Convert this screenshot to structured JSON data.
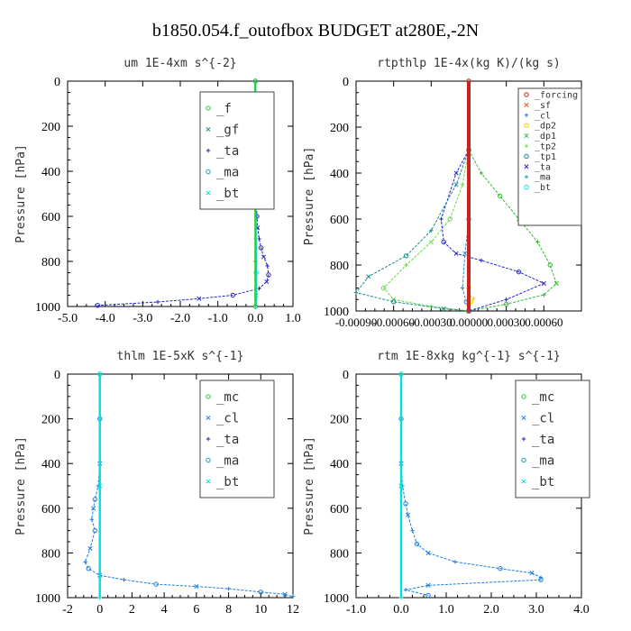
{
  "title": "b1850.054.f_outofbox  BUDGET at280E,-2N",
  "colors": {
    "_f": "#33cc33",
    "_gf": "#1f8a8a",
    "_ta": "#2222cc",
    "_ma": "#1a9ab8",
    "_bt": "#00e0e0",
    "_mc": "#33cc33",
    "_cl": "#1a7fe0",
    "_forcing": "#cc2222",
    "_sf": "#dd5511",
    "_dp2": "#ffcc00",
    "_dp1": "#33bb33",
    "_tp2": "#66dd44",
    "_tp1": "#1a8a8a"
  },
  "chart_data": [
    {
      "type": "line",
      "title": "um  1E-4xm s^{-2}",
      "ylabel": "Pressure [hPa]",
      "xlim": [
        -5.0,
        1.0
      ],
      "ylim": [
        1000,
        0
      ],
      "xticks": [
        "-5.0",
        "-4.0",
        "-3.0",
        "-2.0",
        "-1.0",
        "0.0",
        "1.0"
      ],
      "yticks": [
        "0",
        "200",
        "400",
        "600",
        "800",
        "1000"
      ],
      "legend": [
        "_f",
        "_gf",
        "_ta",
        "_ma",
        "_bt"
      ],
      "legend_position": "top-right",
      "series": [
        {
          "name": "_ta",
          "x": [
            0.0,
            0.0,
            0.02,
            0.04,
            0.06,
            0.1,
            0.15,
            0.22,
            0.32,
            0.35,
            0.3,
            0.1,
            -0.6,
            -1.5,
            -2.6,
            -4.2
          ],
          "y": [
            0,
            300,
            500,
            600,
            650,
            700,
            740,
            780,
            820,
            860,
            890,
            920,
            950,
            965,
            980,
            995
          ]
        },
        {
          "name": "_gf",
          "x": [
            0.0,
            0.0,
            0.0,
            0.0
          ],
          "y": [
            0,
            400,
            800,
            1000
          ]
        },
        {
          "name": "_bt",
          "x": [
            0.0,
            0.0,
            0.01,
            0.02,
            0.02,
            0.01
          ],
          "y": [
            0,
            500,
            700,
            850,
            950,
            1000
          ]
        },
        {
          "name": "_f",
          "x": [
            0.0,
            0.0,
            0.0,
            0.0
          ],
          "y": [
            0,
            400,
            800,
            1000
          ]
        }
      ]
    },
    {
      "type": "line",
      "title": "rtpthlp  1E-4x(kg K)/(kg s)",
      "ylabel": "Pressure [hPa]",
      "xlim": [
        -0.0009,
        0.0009
      ],
      "ylim": [
        1000,
        0
      ],
      "xticks": [
        "-0.00090",
        "-0.00060",
        "-0.00030",
        "0.00000",
        "0.00030",
        "0.00060"
      ],
      "yticks": [
        "0",
        "200",
        "400",
        "600",
        "800",
        "1000"
      ],
      "legend": [
        "_forcing",
        "_sf",
        "_cl",
        "_dp2",
        "_dp1",
        "_tp2",
        "_tp1",
        "_ta",
        "_ma",
        "_bt"
      ],
      "legend_position": "top-right",
      "series": [
        {
          "name": "_dp1",
          "x": [
            0.0,
            0.0,
            0.0001,
            0.00025,
            0.0004,
            0.00055,
            0.00065,
            0.0007,
            0.0006,
            0.0003,
            0.0
          ],
          "y": [
            0,
            300,
            400,
            500,
            600,
            700,
            800,
            880,
            930,
            970,
            1000
          ]
        },
        {
          "name": "_tp2",
          "x": [
            0.0,
            0.0,
            -5e-05,
            -0.00015,
            -0.0003,
            -0.0005,
            -0.00068,
            -0.0006,
            -0.0003,
            0.0
          ],
          "y": [
            0,
            300,
            450,
            600,
            700,
            800,
            900,
            950,
            980,
            1000
          ]
        },
        {
          "name": "_ta",
          "x": [
            0.0,
            -0.0001,
            -0.00022,
            -0.0002,
            -0.0001,
            0.0001,
            0.0004,
            0.0006,
            0.0003,
            0.0
          ],
          "y": [
            300,
            400,
            600,
            700,
            750,
            780,
            830,
            880,
            950,
            1000
          ]
        },
        {
          "name": "_tp1",
          "x": [
            0.0,
            -0.0001,
            -0.0003,
            -0.0005,
            -0.0008,
            -0.0009,
            -0.0006,
            -0.0002,
            0.0
          ],
          "y": [
            300,
            450,
            650,
            760,
            850,
            920,
            960,
            990,
            1000
          ]
        },
        {
          "name": "_ma",
          "x": [
            0.0,
            -3e-05,
            -5e-05,
            -2e-05,
            0.0
          ],
          "y": [
            600,
            750,
            900,
            960,
            1000
          ]
        },
        {
          "name": "_dp2",
          "x": [
            0.0,
            0.0,
            4e-05,
            2e-05,
            0.0
          ],
          "y": [
            900,
            930,
            945,
            960,
            1000
          ]
        },
        {
          "name": "_forcing",
          "x": [
            0.0,
            0.0
          ],
          "y": [
            0,
            1000
          ]
        }
      ]
    },
    {
      "type": "line",
      "title": "thlm  1E-5xK s^{-1}",
      "ylabel": "Pressure [hPa]",
      "xlim": [
        -2,
        12
      ],
      "ylim": [
        1000,
        0
      ],
      "xticks": [
        "-2",
        "0",
        "2",
        "4",
        "6",
        "8",
        "10",
        "12"
      ],
      "yticks": [
        "0",
        "200",
        "400",
        "600",
        "800",
        "1000"
      ],
      "legend": [
        "_mc",
        "_cl",
        "_ta",
        "_ma",
        "_bt"
      ],
      "legend_position": "top-right",
      "series": [
        {
          "name": "_cl",
          "x": [
            0.0,
            0.0,
            -0.1,
            -0.3,
            -0.4,
            -0.5,
            -0.3,
            -0.6,
            -0.9,
            -0.7,
            0.0,
            1.5,
            3.5,
            6.0,
            8.0,
            10.0,
            11.5,
            12.0
          ],
          "y": [
            200,
            400,
            500,
            560,
            600,
            650,
            700,
            780,
            840,
            870,
            900,
            920,
            940,
            950,
            960,
            975,
            985,
            995
          ]
        },
        {
          "name": "_mc",
          "x": [
            0.0,
            0.0,
            0.0
          ],
          "y": [
            0,
            500,
            1000
          ]
        },
        {
          "name": "_bt",
          "x": [
            0.0,
            0.0,
            0.0
          ],
          "y": [
            0,
            500,
            1000
          ]
        }
      ]
    },
    {
      "type": "line",
      "title": "rtm  1E-8xkg kg^{-1} s^{-1}",
      "ylabel": "Pressure [hPa]",
      "xlim": [
        -1.0,
        4.0
      ],
      "ylim": [
        1000,
        0
      ],
      "xticks": [
        "-1.0",
        "0.0",
        "1.0",
        "2.0",
        "3.0",
        "4.0"
      ],
      "yticks": [
        "0",
        "200",
        "400",
        "600",
        "800",
        "1000"
      ],
      "legend": [
        "_mc",
        "_cl",
        "_ta",
        "_ma",
        "_bt"
      ],
      "legend_position": "top-right",
      "series": [
        {
          "name": "_cl",
          "x": [
            0.0,
            0.0,
            0.03,
            0.1,
            0.15,
            0.25,
            0.35,
            0.6,
            1.2,
            2.2,
            2.9,
            3.1,
            3.1,
            0.6,
            0.1,
            0.6
          ],
          "y": [
            200,
            400,
            500,
            580,
            630,
            700,
            760,
            800,
            840,
            870,
            890,
            910,
            920,
            945,
            965,
            990
          ]
        },
        {
          "name": "_mc",
          "x": [
            0.0,
            0.0,
            0.0
          ],
          "y": [
            0,
            500,
            1000
          ]
        },
        {
          "name": "_bt",
          "x": [
            0.0,
            0.0,
            0.0
          ],
          "y": [
            0,
            500,
            1000
          ]
        }
      ]
    }
  ]
}
